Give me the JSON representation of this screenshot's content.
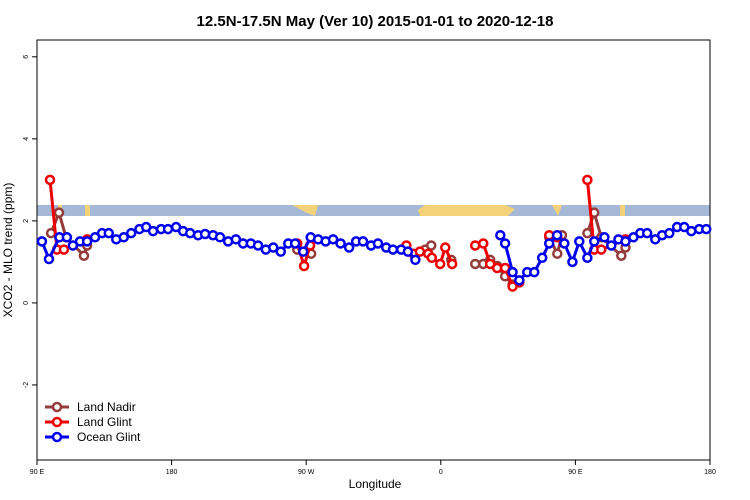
{
  "chart_data": {
    "type": "line",
    "title": "12.5N-17.5N May (Ver 10)   2015-01-01 to 2020-12-18",
    "x_label": "Longitude",
    "y_label": "XCO2 - MLO trend (ppm)",
    "xlim": [
      90,
      540
    ],
    "xticks": [
      {
        "value": 90,
        "label": "90 E"
      },
      {
        "value": 180,
        "label": "180"
      },
      {
        "value": 270,
        "label": "90 W"
      },
      {
        "value": 360,
        "label": "0"
      },
      {
        "value": 450,
        "label": "90 E"
      },
      {
        "value": 540,
        "label": "180"
      }
    ],
    "ylim": [
      -3.83,
      6.41
    ],
    "yticks": [
      -2,
      0,
      2,
      4,
      6
    ],
    "legend": "bottom-left",
    "series": [
      {
        "name": "Land Nadir",
        "color": "#943c3c",
        "x": [
          99.4,
          104.7,
          109.4,
          121.4,
          123.5,
          null,
          264,
          273.3,
          null,
          349.6,
          353.6,
          null,
          367,
          null,
          383,
          388.4,
          393,
          397.7,
          403,
          408,
          null,
          432.5,
          437.9,
          441,
          null,
          458,
          462.6,
          467.3,
          480.7,
          483.5
        ],
        "values": [
          1.7,
          2.2,
          1.6,
          1.15,
          1.4,
          null,
          1.3,
          1.2,
          null,
          1.3,
          1.4,
          null,
          1.05,
          null,
          0.95,
          0.95,
          1.05,
          0.9,
          0.65,
          0.45,
          null,
          1.6,
          1.2,
          1.65,
          null,
          1.7,
          2.2,
          1.6,
          1.15,
          1.35
        ]
      },
      {
        "name": "Land Glint",
        "color": "#ee0000",
        "x": [
          98.7,
          103.4,
          108,
          123.5,
          null,
          264,
          268.6,
          272.6,
          null,
          337,
          341.6,
          346,
          351.6,
          354,
          359.6,
          363,
          367.6,
          null,
          383,
          388.4,
          393,
          397.7,
          403,
          408,
          412.5,
          null,
          432.5,
          437.9,
          null,
          458,
          462.6,
          467.3,
          483.5
        ],
        "values": [
          3.0,
          1.3,
          1.3,
          1.55,
          null,
          1.45,
          0.9,
          1.4,
          null,
          1.4,
          1.2,
          1.25,
          1.2,
          1.1,
          0.95,
          1.35,
          0.95,
          null,
          1.4,
          1.45,
          0.95,
          0.85,
          0.85,
          0.4,
          0.5,
          null,
          1.65,
          1.6,
          null,
          3.0,
          1.3,
          1.3,
          1.55
        ]
      },
      {
        "name": "Ocean Glint",
        "color": "#0000ee",
        "x": [
          93.3,
          98,
          105,
          110,
          114,
          118.8,
          123.5,
          128.8,
          133.5,
          138,
          143,
          148,
          153,
          158.5,
          163,
          167.6,
          173,
          177.6,
          183,
          187.7,
          192.4,
          197.7,
          202.4,
          207.7,
          212.4,
          217.8,
          223,
          227.8,
          233,
          237.8,
          243,
          248,
          253,
          258,
          262.6,
          268,
          273,
          278,
          283,
          288,
          293,
          298.7,
          303.4,
          308,
          313.4,
          318,
          323.5,
          328,
          333.5,
          338,
          343,
          null,
          399.8,
          403,
          408,
          412.5,
          417.8,
          422.5,
          427.8,
          432.5,
          437.8,
          442.6,
          448,
          452.6,
          458,
          462.6,
          469.4,
          474,
          478.8,
          483.5,
          488.8,
          493.4,
          498,
          503.4,
          508,
          512.8,
          518,
          522.8,
          527.5,
          532.8,
          537.5
        ],
        "values": [
          1.5,
          1.07,
          1.6,
          1.6,
          1.4,
          1.5,
          1.5,
          1.6,
          1.7,
          1.7,
          1.55,
          1.6,
          1.7,
          1.8,
          1.85,
          1.75,
          1.8,
          1.8,
          1.85,
          1.75,
          1.7,
          1.65,
          1.68,
          1.65,
          1.6,
          1.5,
          1.55,
          1.45,
          1.45,
          1.4,
          1.3,
          1.35,
          1.25,
          1.45,
          1.45,
          1.25,
          1.6,
          1.55,
          1.5,
          1.55,
          1.45,
          1.35,
          1.5,
          1.5,
          1.4,
          1.45,
          1.35,
          1.3,
          1.3,
          1.25,
          1.05,
          null,
          1.65,
          1.45,
          0.75,
          0.55,
          0.75,
          0.75,
          1.1,
          1.45,
          1.65,
          1.45,
          1.0,
          1.5,
          1.1,
          1.5,
          1.6,
          1.4,
          1.55,
          1.5,
          1.6,
          1.7,
          1.7,
          1.55,
          1.65,
          1.7,
          1.85,
          1.85,
          1.75,
          1.8,
          1.8
        ]
      }
    ]
  }
}
